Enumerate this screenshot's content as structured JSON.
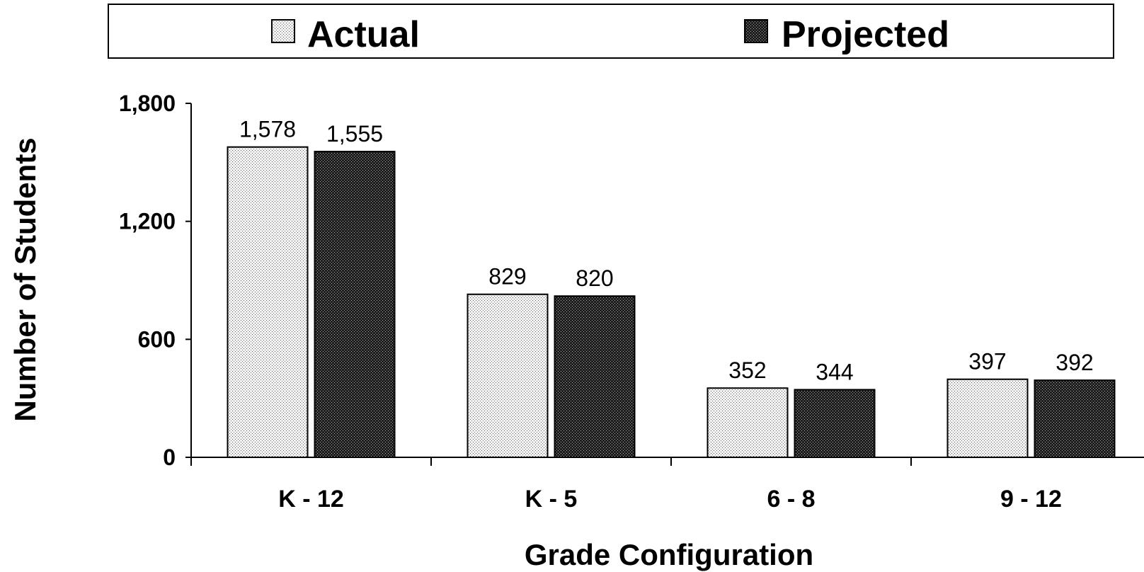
{
  "chart_data": {
    "type": "bar",
    "title": "",
    "xlabel": "Grade Configuration",
    "ylabel": "Number of Students",
    "categories": [
      "K - 12",
      "K - 5",
      "6 - 8",
      "9 - 12"
    ],
    "series": [
      {
        "name": "Actual",
        "values": [
          1578,
          829,
          352,
          397
        ],
        "labels": [
          "1,578",
          "829",
          "352",
          "397"
        ],
        "color": "#d8d8d8"
      },
      {
        "name": "Projected",
        "values": [
          1555,
          820,
          344,
          392
        ],
        "labels": [
          "1,555",
          "820",
          "344",
          "392"
        ],
        "color": "#3a3a3a"
      }
    ],
    "ylim": [
      0,
      1800
    ],
    "yticks": [
      0,
      600,
      1200,
      1800
    ],
    "ytick_labels": [
      "0",
      "600",
      "1,200",
      "1,800"
    ],
    "grid": false,
    "legend_position": "top"
  }
}
